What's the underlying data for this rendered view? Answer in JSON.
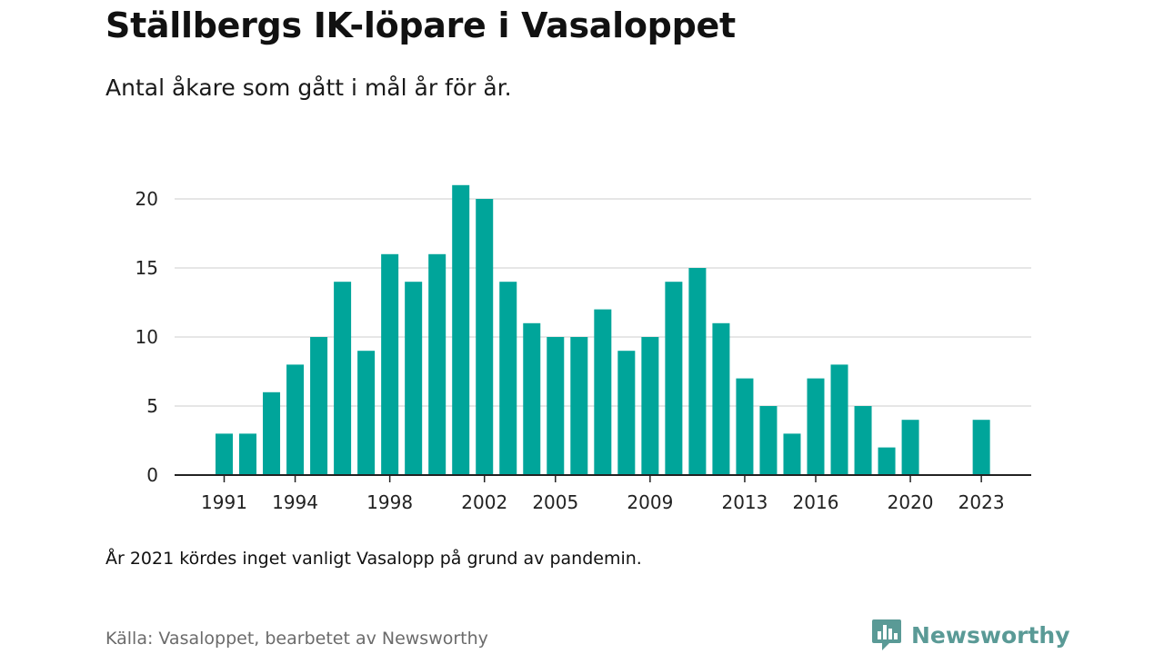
{
  "title": "Ställbergs IK-löpare i Vasaloppet",
  "subtitle": "Antal åkare som gått i mål år för år.",
  "note": "År 2021 kördes inget vanligt Vasalopp på grund av pandemin.",
  "source": "Källa: Vasaloppet, bearbetet av Newsworthy",
  "brand": {
    "name": "Newsworthy",
    "icon": "newsworthy-logo-icon",
    "color": "#5a9a96"
  },
  "colors": {
    "bar": "#00a59a",
    "grid": "#dddddd",
    "axis": "#222222"
  },
  "chart_data": {
    "type": "bar",
    "x": [
      1991,
      1992,
      1993,
      1994,
      1995,
      1996,
      1997,
      1998,
      1999,
      2000,
      2001,
      2002,
      2003,
      2004,
      2005,
      2006,
      2007,
      2008,
      2009,
      2010,
      2011,
      2012,
      2013,
      2014,
      2015,
      2016,
      2017,
      2018,
      2019,
      2020,
      2021,
      2022,
      2023
    ],
    "values": [
      3,
      3,
      6,
      8,
      10,
      14,
      9,
      16,
      14,
      16,
      21,
      20,
      14,
      11,
      10,
      10,
      12,
      9,
      10,
      14,
      15,
      11,
      7,
      5,
      3,
      7,
      8,
      5,
      2,
      4,
      null,
      0,
      4
    ],
    "x_ticks": [
      "1991",
      "1994",
      "1998",
      "2002",
      "2005",
      "2009",
      "2013",
      "2016",
      "2020",
      "2023"
    ],
    "y_ticks": [
      "0",
      "5",
      "10",
      "15",
      "20"
    ],
    "ylim": [
      0,
      22
    ],
    "grid": true,
    "legend": "none"
  }
}
